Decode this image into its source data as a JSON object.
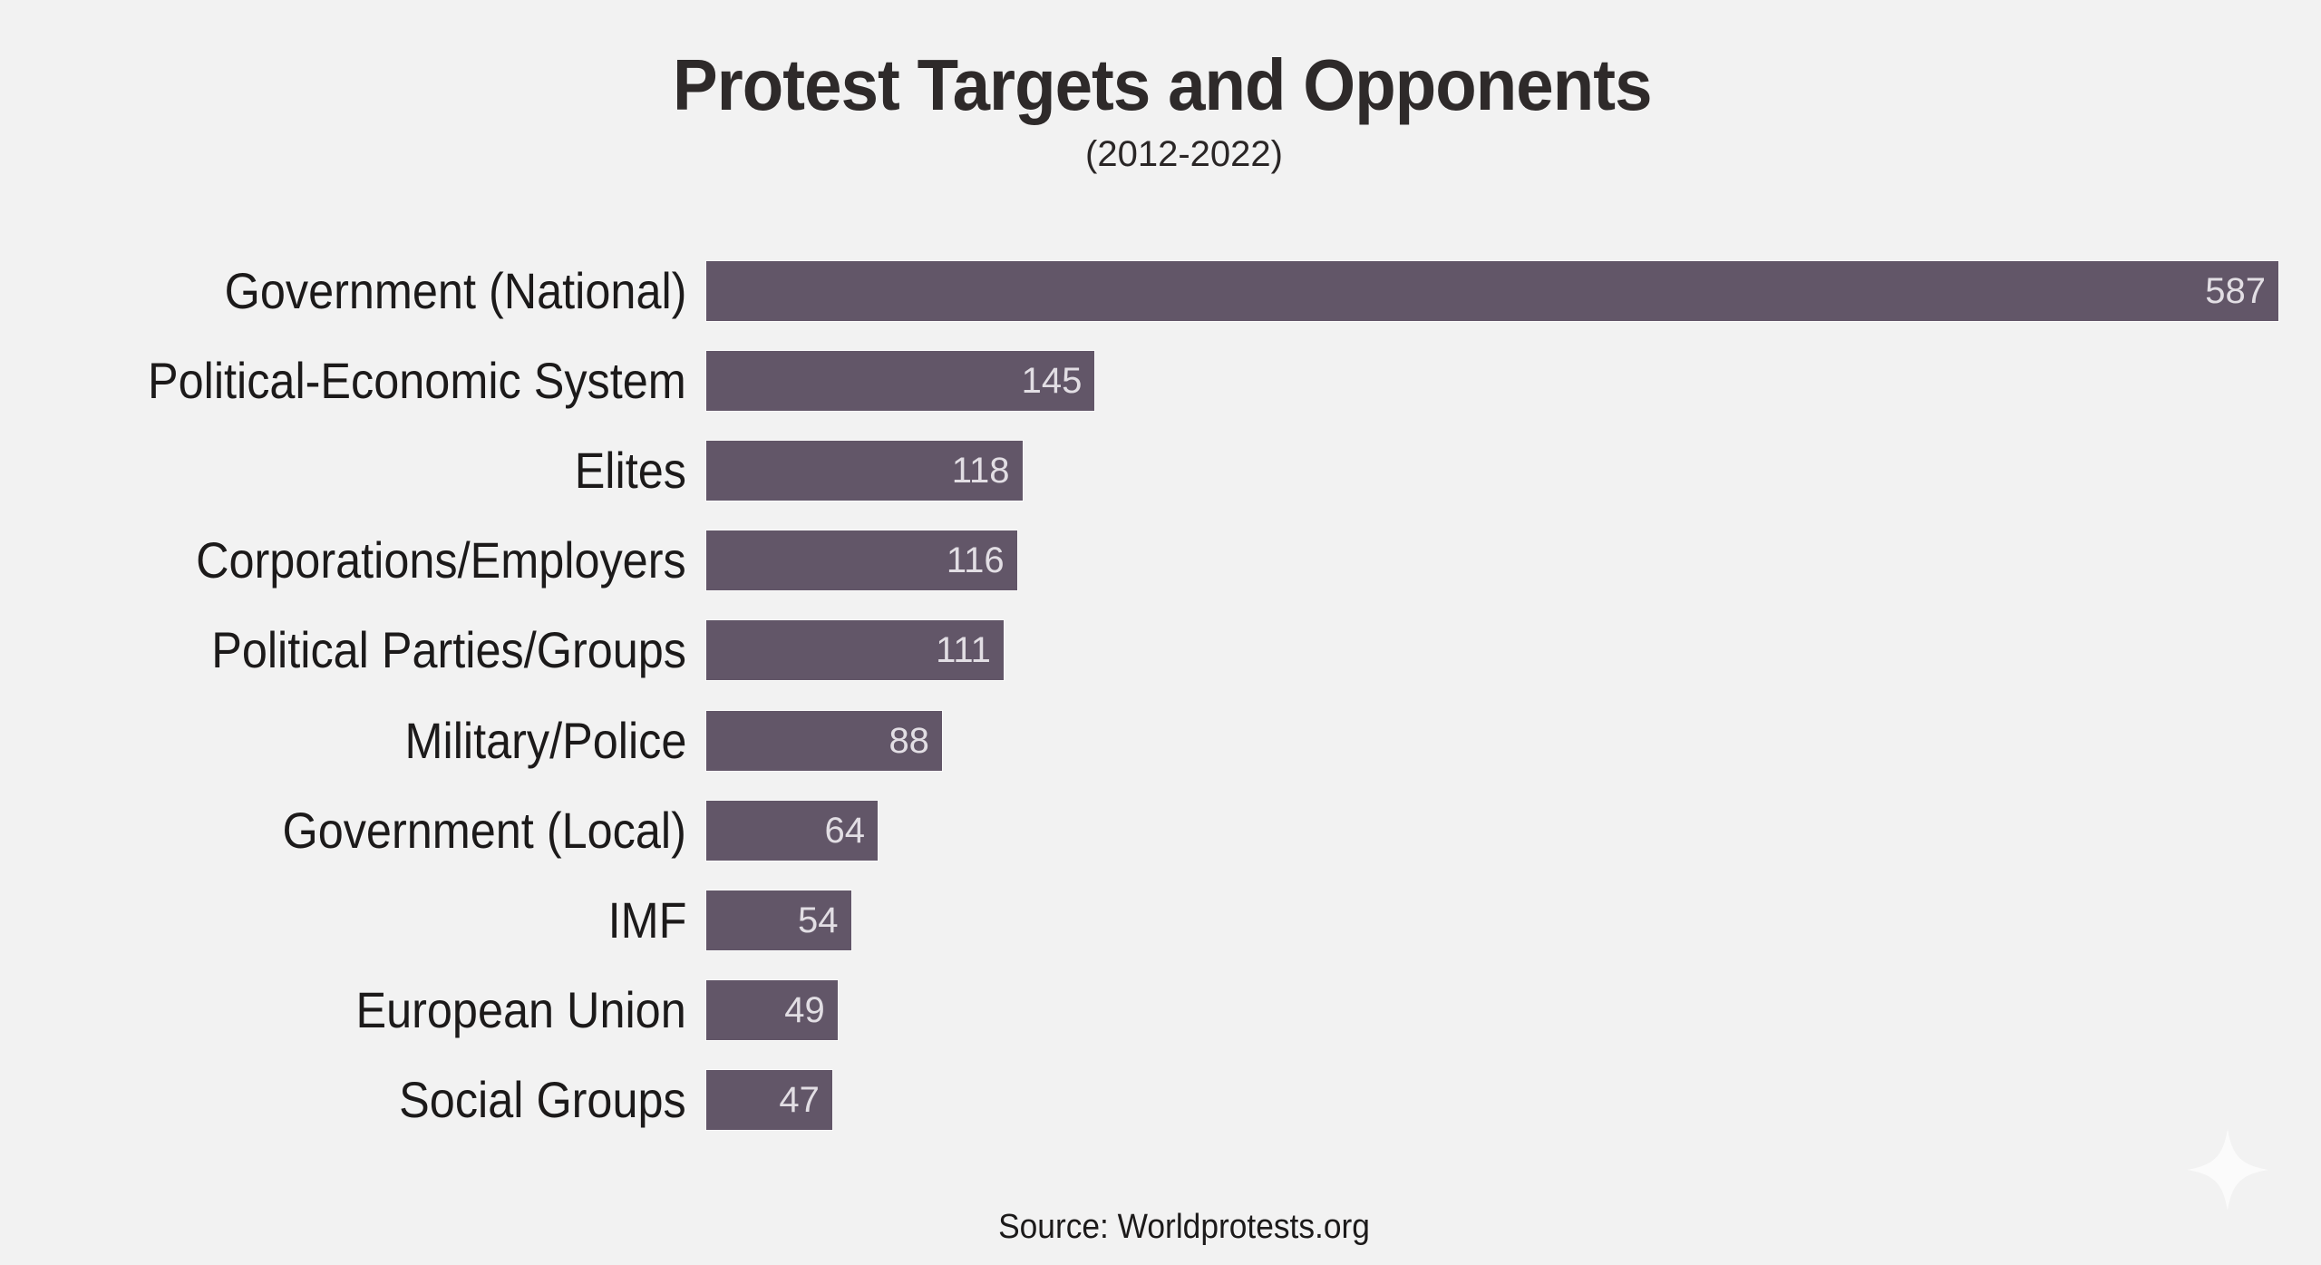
{
  "colors": {
    "background": "#f2f2f2",
    "bar": "#625668",
    "value_text": "#e2dee4",
    "title_text": "#2e2a2a"
  },
  "watermark_icon": "sparkle-icon",
  "chart_data": {
    "type": "bar",
    "orientation": "horizontal",
    "title": "Protest Targets and Opponents",
    "subtitle": "(2012-2022)",
    "xlabel": "",
    "ylabel": "",
    "xlim": [
      0,
      587
    ],
    "grid": false,
    "legend": "none",
    "categories": [
      "Government (National)",
      "Political-Economic System",
      "Elites",
      "Corporations/Employers",
      "Political Parties/Groups",
      "Military/Police",
      "Government (Local)",
      "IMF",
      "European Union",
      "Social Groups"
    ],
    "values": [
      587,
      145,
      118,
      116,
      111,
      88,
      64,
      54,
      49,
      47
    ],
    "value_labels": [
      "587",
      "145",
      "118",
      "116",
      "111",
      "88",
      "64",
      "54",
      "49",
      "47"
    ],
    "source": "Source: Worldprotests.org"
  }
}
